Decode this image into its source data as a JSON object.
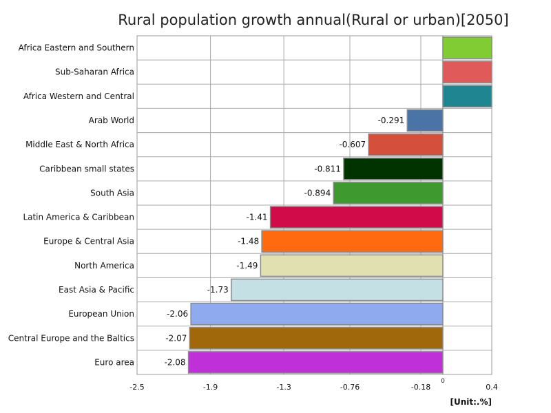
{
  "chart_data": {
    "type": "bar",
    "orientation": "horizontal",
    "title": "Rural population growth annual(Rural or urban)[2050]",
    "unit_label": "[Unit:.%]",
    "xlim": [
      -2.5,
      0.4
    ],
    "x_ticks": [
      "-2.5",
      "-1.9",
      "-1.3",
      "-0.76",
      "-0.18",
      "0.4"
    ],
    "zero_label": "0",
    "grid": true,
    "legend": "none",
    "categories": [
      "Africa Eastern and Southern",
      "Sub-Saharan Africa",
      "Africa Western and Central",
      "Arab World",
      "Middle East & North Africa",
      "Caribbean small states",
      "South Asia",
      "Latin America & Caribbean",
      "Europe & Central Asia",
      "North America",
      "East Asia & Pacific",
      "European Union",
      "Central Europe and the Baltics",
      "Euro area"
    ],
    "values": [
      0.4,
      0.4,
      0.4,
      -0.291,
      -0.607,
      -0.811,
      -0.894,
      -1.41,
      -1.48,
      -1.49,
      -1.73,
      -2.06,
      -2.07,
      -2.08
    ],
    "value_labels": [
      "",
      "",
      "",
      "-0.291",
      "-0.607",
      "-0.811",
      "-0.894",
      "-1.41",
      "-1.48",
      "-1.49",
      "-1.73",
      "-2.06",
      "-2.07",
      "-2.08"
    ],
    "colors": [
      "#82cc33",
      "#e05a5a",
      "#1e8591",
      "#4a74a5",
      "#d44f3c",
      "#003300",
      "#3e9a2e",
      "#d10a4a",
      "#ff6a10",
      "#e0e0b0",
      "#c4e0e4",
      "#8faaee",
      "#a0680a",
      "#c030d8"
    ]
  }
}
